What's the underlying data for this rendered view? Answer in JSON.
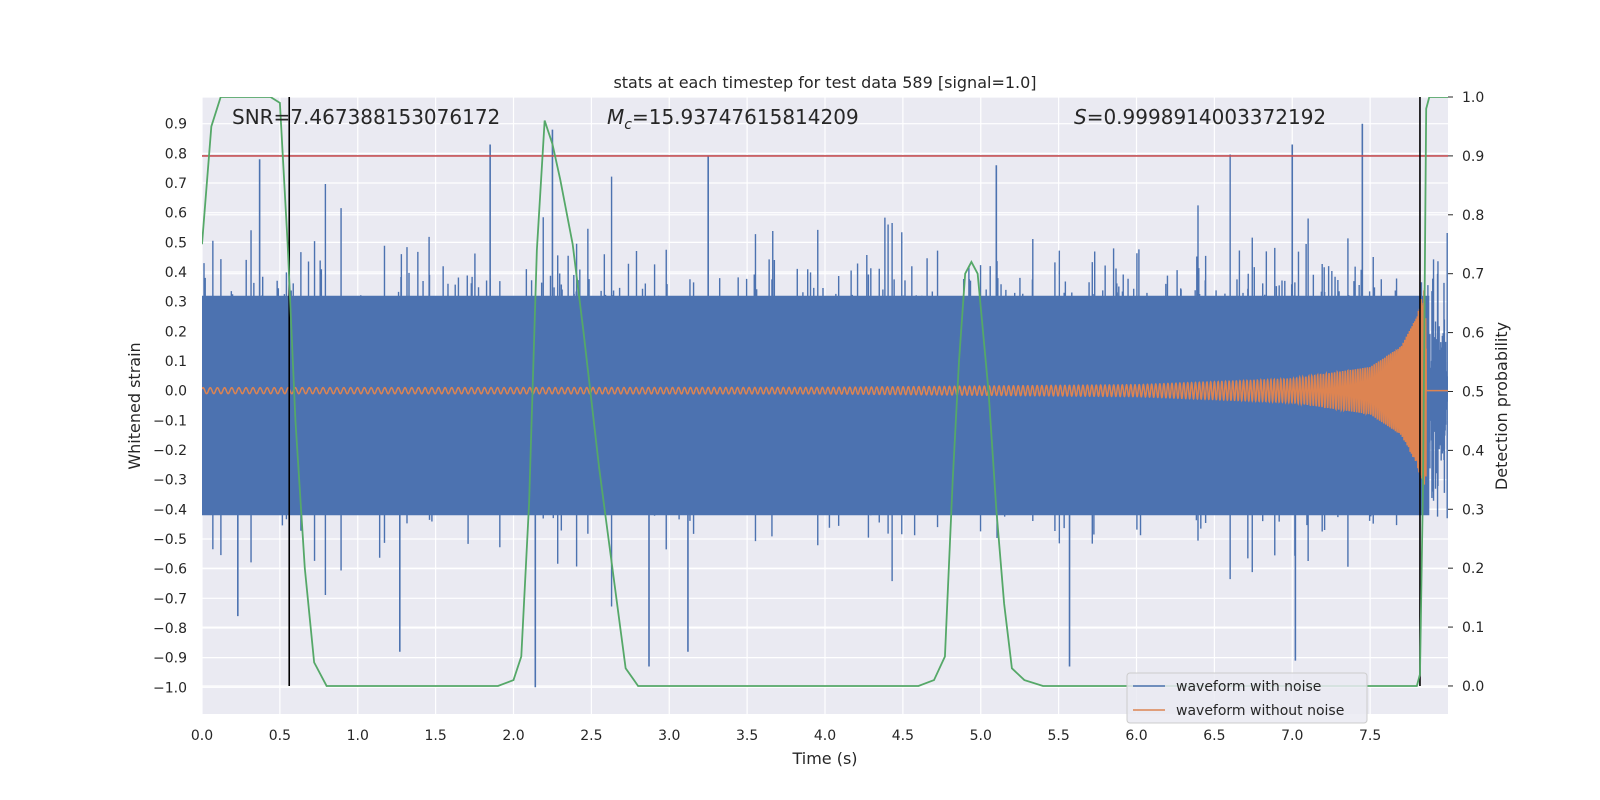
{
  "chart_data": {
    "type": "line",
    "title": "stats at each timestep for test data 589 [signal=1.0]",
    "xlabel": "Time (s)",
    "ylabel": "Whitened strain",
    "y2label": "Detection probability",
    "xlim": [
      0.0,
      8.0
    ],
    "ylim": [
      -1.09,
      0.99
    ],
    "y2lim": [
      -0.0476,
      1.0
    ],
    "x_ticks": [
      0.0,
      0.5,
      1.0,
      1.5,
      2.0,
      2.5,
      3.0,
      3.5,
      4.0,
      4.5,
      5.0,
      5.5,
      6.0,
      6.5,
      7.0,
      7.5
    ],
    "x_tick_labels": [
      "0.0",
      "0.5",
      "1.0",
      "1.5",
      "2.0",
      "2.5",
      "3.0",
      "3.5",
      "4.0",
      "4.5",
      "5.0",
      "5.5",
      "6.0",
      "6.5",
      "7.0",
      "7.5"
    ],
    "y_ticks": [
      0.9,
      0.8,
      0.7,
      0.6,
      0.5,
      0.4,
      0.3,
      0.2,
      0.1,
      0.0,
      -0.1,
      -0.2,
      -0.3,
      -0.4,
      -0.5,
      -0.6,
      -0.7,
      -0.8,
      -0.9,
      -1.0
    ],
    "y_tick_labels": [
      "0.9",
      "0.8",
      "0.7",
      "0.6",
      "0.5",
      "0.4",
      "0.3",
      "0.2",
      "0.1",
      "0.0",
      "−0.1",
      "−0.2",
      "−0.3",
      "−0.4",
      "−0.5",
      "−0.6",
      "−0.7",
      "−0.8",
      "−0.9",
      "−1.0"
    ],
    "y2_ticks": [
      1.0,
      0.9,
      0.8,
      0.7,
      0.6,
      0.5,
      0.4,
      0.3,
      0.2,
      0.1,
      0.0
    ],
    "y2_tick_labels": [
      "1.0",
      "0.9",
      "0.8",
      "0.7",
      "0.6",
      "0.5",
      "0.4",
      "0.3",
      "0.2",
      "0.1",
      "0.0"
    ],
    "annotations": {
      "snr": "SNR=7.467388153076172",
      "mc_symbol": "M",
      "mc_sub": "c",
      "mc_value": "=15.93747615814209",
      "s_symbol": "S",
      "s_value": "=0.9998914003372192"
    },
    "threshold": {
      "y2": 0.9,
      "color": "#c44e52"
    },
    "vertical_lines": [
      0.56,
      7.82
    ],
    "series": [
      {
        "name": "waveform with noise",
        "color": "#4c72b0",
        "description": "dense noise, core band roughly -0.45..0.45 with spikes up to 0.9 and down to -1.0",
        "notable_peaks": [
          [
            0.37,
            0.78
          ],
          [
            1.85,
            0.83
          ],
          [
            2.25,
            0.88
          ],
          [
            3.25,
            0.79
          ],
          [
            5.1,
            0.76
          ],
          [
            7.0,
            0.83
          ],
          [
            7.45,
            0.9
          ]
        ],
        "notable_troughs": [
          [
            0.23,
            -0.76
          ],
          [
            1.27,
            -0.88
          ],
          [
            2.14,
            -1.0
          ],
          [
            2.87,
            -0.93
          ],
          [
            3.12,
            -0.88
          ],
          [
            5.57,
            -0.93
          ],
          [
            7.02,
            -0.91
          ]
        ]
      },
      {
        "name": "waveform without noise",
        "color": "#dd8452",
        "description": "chirp, amplitude ~0.01 growing to ~0.35 before merger at ~7.85 s",
        "x": [
          0.0,
          4.0,
          6.0,
          7.0,
          7.5,
          7.7,
          7.8,
          7.85,
          7.9,
          8.0
        ],
        "amplitude": [
          0.01,
          0.011,
          0.02,
          0.04,
          0.08,
          0.15,
          0.25,
          0.35,
          0.0,
          0.0
        ]
      },
      {
        "name": "detection probability",
        "color": "#55a868",
        "axis": "y2",
        "x": [
          0.0,
          0.06,
          0.12,
          0.2,
          0.3,
          0.38,
          0.44,
          0.5,
          0.55,
          0.6,
          0.66,
          0.72,
          0.8,
          0.88,
          1.0,
          1.9,
          2.0,
          2.05,
          2.1,
          2.15,
          2.2,
          2.25,
          2.3,
          2.38,
          2.45,
          2.55,
          2.65,
          2.72,
          2.8,
          3.0,
          3.5,
          4.0,
          4.6,
          4.7,
          4.77,
          4.82,
          4.86,
          4.9,
          4.94,
          4.98,
          5.05,
          5.1,
          5.15,
          5.2,
          5.28,
          5.4,
          5.6,
          6.0,
          7.0,
          7.8,
          7.82,
          7.84,
          7.86,
          7.88,
          7.9,
          8.0
        ],
        "y": [
          0.75,
          0.95,
          1.0,
          1.0,
          1.0,
          1.0,
          1.0,
          0.99,
          0.75,
          0.45,
          0.2,
          0.04,
          0.0,
          0.0,
          0.0,
          0.0,
          0.01,
          0.05,
          0.31,
          0.74,
          0.96,
          0.92,
          0.86,
          0.75,
          0.6,
          0.37,
          0.17,
          0.03,
          0.0,
          0.0,
          0.0,
          0.0,
          0.0,
          0.01,
          0.05,
          0.35,
          0.55,
          0.7,
          0.72,
          0.7,
          0.5,
          0.3,
          0.14,
          0.03,
          0.01,
          0.0,
          0.0,
          0.0,
          0.0,
          0.0,
          0.02,
          0.35,
          0.98,
          1.0,
          1.0,
          1.0
        ]
      }
    ],
    "legend": {
      "location": "lower-right",
      "entries": [
        "waveform with noise",
        "waveform without noise"
      ]
    },
    "background": "#eaeaf2",
    "grid": true
  }
}
